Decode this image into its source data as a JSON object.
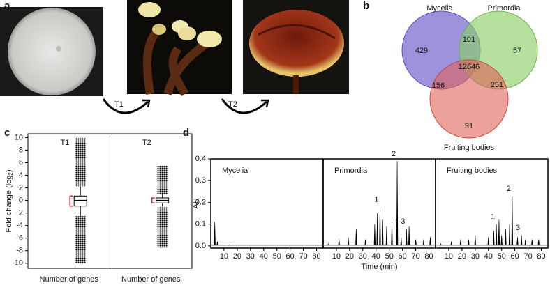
{
  "figure": {
    "a": {
      "label": "a",
      "steps": [
        "T1",
        "T2"
      ]
    },
    "b": {
      "label": "b",
      "sets": [
        "Mycelia",
        "Primordia",
        "Fruiting bodies"
      ],
      "regions": {
        "mycelia_only": 429,
        "mycelia_primordia": 101,
        "primordia_only": 57,
        "all": 12646,
        "mycelia_fruiting": 156,
        "primordia_fruiting": 251,
        "fruiting_only": 91
      }
    }
  },
  "chart_data": [
    {
      "type": "box",
      "panel_label": "c",
      "ylabel": "Fold change (log",
      "ylabel_subscript": "2",
      "ylabel_suffix": ")",
      "ylim": [
        -10.8,
        10.6
      ],
      "yticks": [
        -10,
        -8,
        -6,
        -4,
        -2,
        0,
        2,
        4,
        6,
        8,
        10
      ],
      "panels": [
        {
          "title": "T1",
          "xlabel": "Number of genes",
          "color": "#d62728",
          "box": {
            "whisker_low": -2.5,
            "q1": -0.9,
            "median": 0,
            "q3": 0.7,
            "whisker_high": 2.2,
            "outlier_ranges": [
              [
                2.2,
                10
              ],
              [
                -10,
                -2.5
              ]
            ]
          }
        },
        {
          "title": "T2",
          "xlabel": "Number of genes",
          "color": "#d62728",
          "box": {
            "whisker_low": -1,
            "q1": -0.4,
            "median": 0,
            "q3": 0.4,
            "whisker_high": 1,
            "outlier_ranges": [
              [
                1,
                5.5
              ],
              [
                -7.5,
                -1
              ]
            ]
          }
        }
      ]
    },
    {
      "type": "line",
      "panel_label": "d",
      "ylabel": "AU",
      "xlabel": "Time (min)",
      "ylim": [
        -0.01,
        0.4
      ],
      "yticks": [
        {
          "value": 0,
          "label": "0.0"
        },
        0.1,
        0.2,
        0.3,
        0.4
      ],
      "xlim": [
        0,
        85
      ],
      "xticks": [
        10,
        20,
        30,
        40,
        50,
        60,
        70,
        80
      ],
      "panels": [
        {
          "title": "Mycelia",
          "x": [
            3,
            5,
            14
          ],
          "values": [
            0.11,
            0.02,
            0.005
          ],
          "annotations": []
        },
        {
          "title": "Primordia",
          "x": [
            4,
            12,
            19,
            25,
            32,
            39,
            41,
            43,
            45,
            48,
            52,
            56,
            59,
            63,
            65,
            70,
            76,
            81
          ],
          "values": [
            0.01,
            0.03,
            0.04,
            0.08,
            0.03,
            0.1,
            0.15,
            0.18,
            0.12,
            0.09,
            0.11,
            0.39,
            0.04,
            0.08,
            0.09,
            0.03,
            0.03,
            0.04
          ],
          "annotations": [
            {
              "text": "1",
              "x": 43,
              "y": 0.18
            },
            {
              "text": "2",
              "x": 56,
              "y": 0.39
            },
            {
              "text": "3",
              "x": 63,
              "y": 0.08
            }
          ]
        },
        {
          "title": "Fruiting bodies",
          "x": [
            4,
            12,
            19,
            25,
            30,
            40,
            44,
            46,
            48,
            50,
            53,
            56,
            58,
            62,
            65,
            68,
            73,
            78
          ],
          "values": [
            0.01,
            0.02,
            0.03,
            0.03,
            0.05,
            0.04,
            0.07,
            0.1,
            0.12,
            0.05,
            0.08,
            0.1,
            0.23,
            0.04,
            0.05,
            0.03,
            0.03,
            0.03
          ],
          "annotations": [
            {
              "text": "1",
              "x": 46,
              "y": 0.1
            },
            {
              "text": "2",
              "x": 58,
              "y": 0.23
            },
            {
              "text": "3",
              "x": 65,
              "y": 0.05
            }
          ]
        }
      ]
    }
  ]
}
